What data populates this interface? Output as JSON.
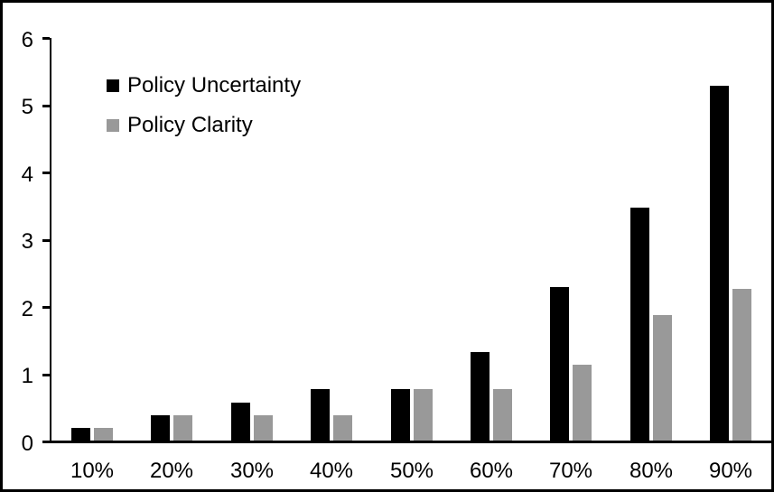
{
  "chart_data": {
    "type": "bar",
    "title": "",
    "xlabel": "",
    "ylabel": "",
    "categories": [
      "10%",
      "20%",
      "30%",
      "40%",
      "50%",
      "60%",
      "70%",
      "80%",
      "90%"
    ],
    "series": [
      {
        "name": "Policy Uncertainty",
        "color": "#000000",
        "values": [
          0.19,
          0.38,
          0.57,
          0.76,
          0.77,
          1.32,
          2.28,
          3.46,
          5.27
        ]
      },
      {
        "name": "Policy Clarity",
        "color": "#999999",
        "values": [
          0.19,
          0.38,
          0.38,
          0.38,
          0.76,
          0.76,
          1.13,
          1.87,
          2.26
        ]
      }
    ],
    "ylim": [
      0,
      6
    ],
    "yticks": [
      "0",
      "1",
      "2",
      "3",
      "4",
      "5",
      "6"
    ],
    "grid": false,
    "legend_position": "top-left",
    "frame_color": "#000000",
    "background_color": "#ffffff"
  }
}
